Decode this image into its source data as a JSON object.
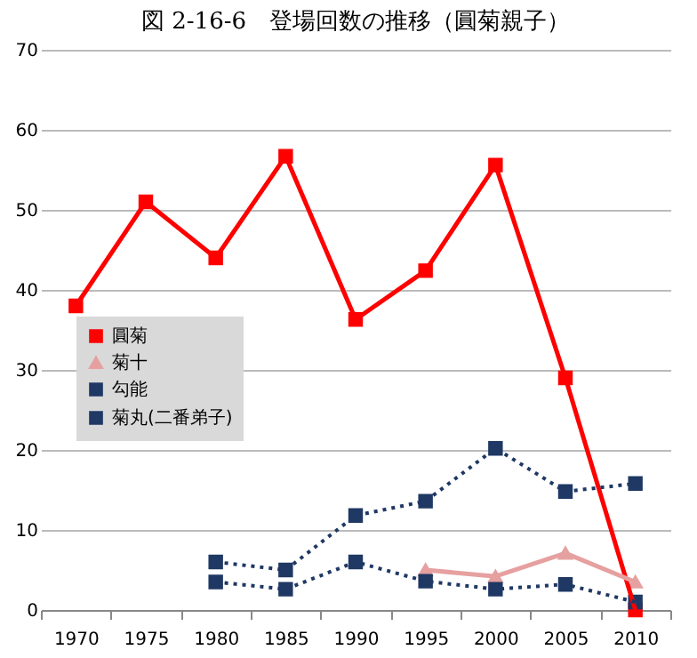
{
  "chart_data": {
    "type": "line",
    "title": "図 2-16-6　登場回数の推移（圓菊親子）",
    "categories": [
      "1970",
      "1975",
      "1980",
      "1985",
      "1990",
      "1995",
      "2000",
      "2005",
      "2010"
    ],
    "series": [
      {
        "name": "圓菊",
        "color": "#ff0000",
        "marker": "square",
        "line_style": "solid",
        "values": [
          38,
          51,
          44,
          56.7,
          36.3,
          42.4,
          55.6,
          29,
          0
        ]
      },
      {
        "name": "菊十",
        "color": "#e6a0a0",
        "marker": "triangle",
        "line_style": "solid",
        "values": [
          null,
          null,
          null,
          null,
          null,
          5,
          4.2,
          7.1,
          3.5
        ]
      },
      {
        "name": "勾能",
        "color": "#1f3864",
        "marker": "square",
        "line_style": "dotted",
        "values": [
          null,
          null,
          3.5,
          2.6,
          6,
          3.6,
          2.6,
          3.2,
          1
        ]
      },
      {
        "name": "菊丸(二番弟子)",
        "color": "#1f3864",
        "marker": "square",
        "line_style": "dotted",
        "values": [
          null,
          null,
          6,
          5,
          11.8,
          13.6,
          20.2,
          14.8,
          15.8
        ]
      }
    ],
    "ylim": [
      0,
      70
    ],
    "yticks": [
      0,
      10,
      20,
      30,
      40,
      50,
      60,
      70
    ],
    "grid": "y",
    "legend": "left"
  }
}
